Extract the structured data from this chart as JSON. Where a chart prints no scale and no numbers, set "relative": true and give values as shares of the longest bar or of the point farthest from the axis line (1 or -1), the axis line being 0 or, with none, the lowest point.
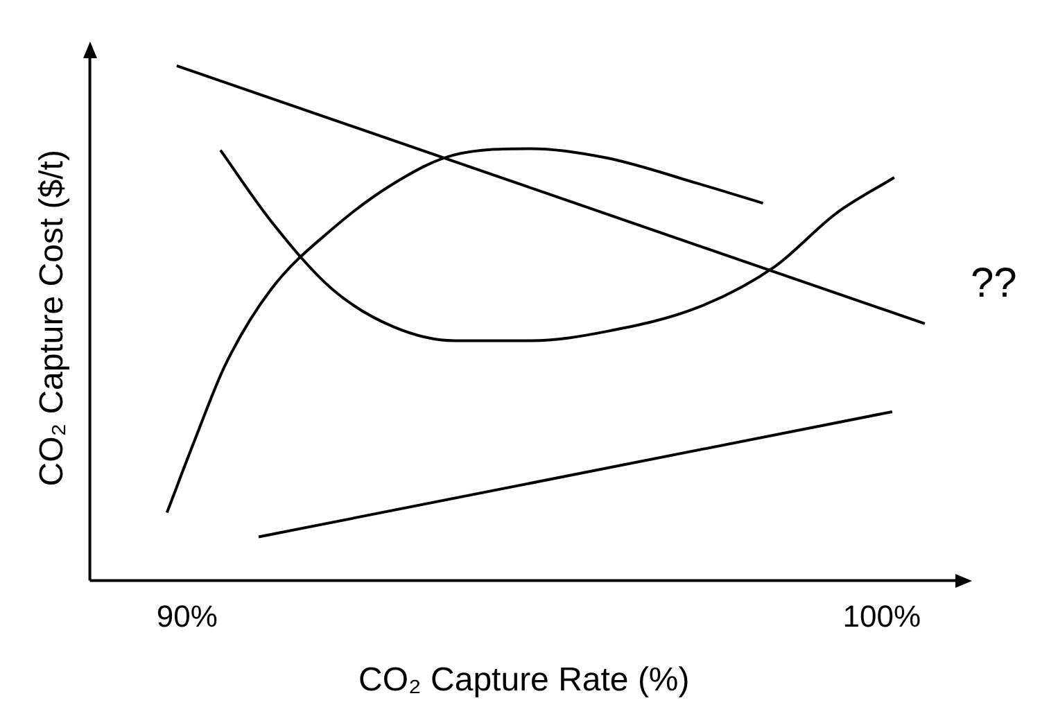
{
  "chart_data": {
    "type": "line",
    "relative": true,
    "xlabel": "CO₂ Capture Rate (%)",
    "ylabel": "CO₂ Capture Cost ($/t)",
    "xlim": [
      88.6,
      101.1
    ],
    "xticks": [
      {
        "value": 90,
        "label": "90%"
      },
      {
        "value": 100,
        "label": "100%"
      }
    ],
    "grid": false,
    "legend": false,
    "marker": "none",
    "annotations": [
      "??"
    ],
    "series": [
      {
        "color": "#000000",
        "x": [
          89.85,
          100.62
        ],
        "values": [
          1.0,
          0.499
        ]
      },
      {
        "color": "#000000",
        "x": [
          91.03,
          100.15
        ],
        "values": [
          0.085,
          0.328
        ]
      },
      {
        "color": "#000000",
        "x": [
          90.48,
          91.21,
          92.09,
          92.97,
          93.85,
          94.95,
          96.04,
          97.36,
          98.46,
          99.34,
          100.18
        ],
        "values": [
          0.836,
          0.698,
          0.566,
          0.493,
          0.466,
          0.466,
          0.484,
          0.531,
          0.61,
          0.713,
          0.783
        ]
      },
      {
        "color": "#000000",
        "x": [
          89.71,
          90.11,
          90.55,
          91.21,
          92.09,
          92.97,
          93.85,
          94.95,
          96.04,
          97.36,
          98.29
        ],
        "values": [
          0.132,
          0.273,
          0.419,
          0.566,
          0.683,
          0.771,
          0.827,
          0.839,
          0.821,
          0.771,
          0.733
        ]
      }
    ]
  }
}
